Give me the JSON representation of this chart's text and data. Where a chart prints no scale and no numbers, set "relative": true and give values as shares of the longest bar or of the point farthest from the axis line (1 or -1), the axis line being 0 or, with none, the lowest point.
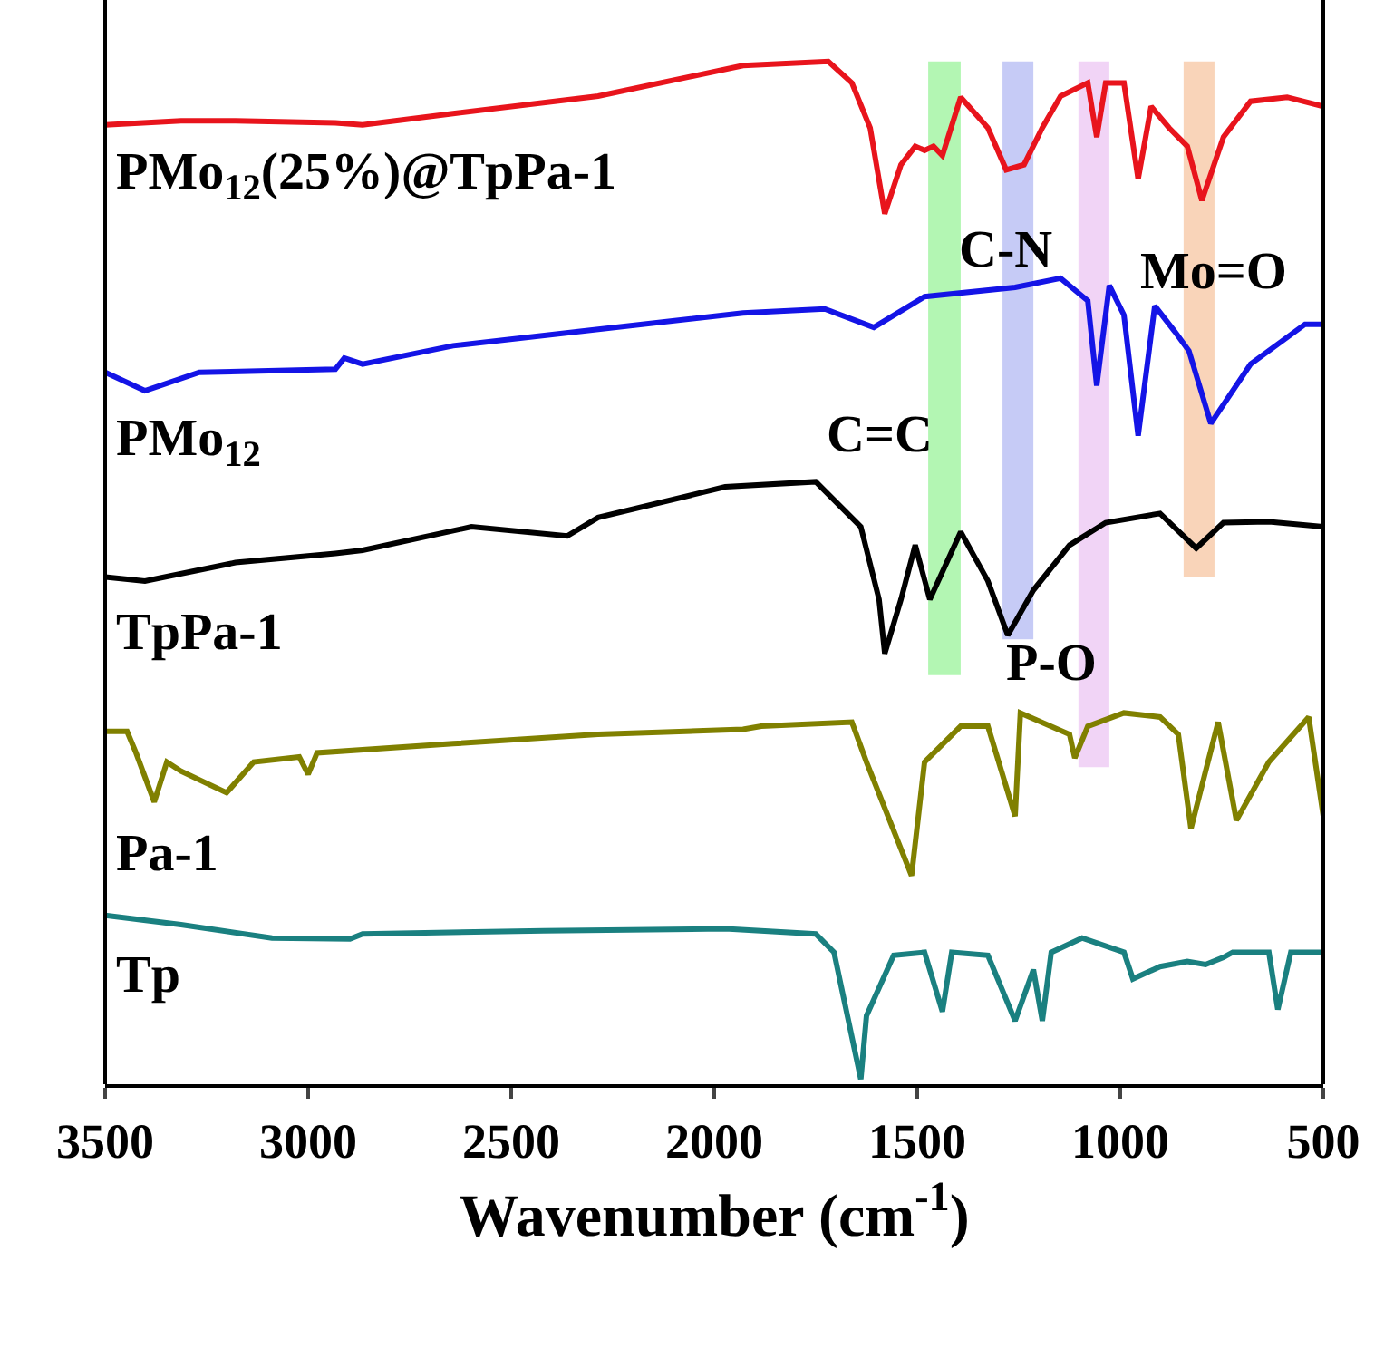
{
  "chart_data": {
    "type": "line",
    "relative": true,
    "xlabel": "Wavenumber (cm$^{-1}$)",
    "xlim": [
      3500,
      500
    ],
    "xticks": [
      3500,
      3000,
      2500,
      2000,
      1500,
      1000,
      500
    ],
    "legend": false,
    "marker": "none",
    "line_style": "solid",
    "series": [
      {
        "name": "PMo$_{12}$(25%)@TpPa-1",
        "color": "#e8141c",
        "x": [
          3500,
          3313,
          3179,
          2933,
          2866,
          2643,
          2286,
          1929,
          1719,
          1661,
          1616,
          1580,
          1540,
          1505,
          1482,
          1460,
          1438,
          1393,
          1326,
          1281,
          1237,
          1192,
          1147,
          1080,
          1058,
          1036,
          991,
          956,
          924,
          880,
          835,
          799,
          746,
          679,
          589,
          500
        ],
        "values": [
          0.938,
          0.942,
          0.942,
          0.94,
          0.938,
          0.949,
          0.966,
          0.996,
          1.0,
          0.979,
          0.935,
          0.851,
          0.899,
          0.917,
          0.913,
          0.917,
          0.908,
          0.965,
          0.935,
          0.894,
          0.899,
          0.935,
          0.966,
          0.979,
          0.926,
          0.979,
          0.979,
          0.885,
          0.956,
          0.935,
          0.917,
          0.864,
          0.926,
          0.961,
          0.965,
          0.956
        ]
      },
      {
        "name": "PMo$_{12}$",
        "color": "#1414e6",
        "x": [
          3500,
          3402,
          3268,
          2933,
          2911,
          2866,
          2643,
          2330,
          1929,
          1728,
          1607,
          1482,
          1259,
          1147,
          1080,
          1058,
          1027,
          991,
          956,
          915,
          866,
          831,
          777,
          679,
          545,
          500
        ],
        "values": [
          0.696,
          0.678,
          0.696,
          0.699,
          0.71,
          0.704,
          0.722,
          0.736,
          0.754,
          0.758,
          0.74,
          0.77,
          0.779,
          0.788,
          0.766,
          0.683,
          0.781,
          0.752,
          0.634,
          0.761,
          0.736,
          0.717,
          0.646,
          0.704,
          0.743,
          0.743
        ]
      },
      {
        "name": "TpPa-1",
        "color": "#000000",
        "x": [
          3500,
          3402,
          3179,
          2933,
          2866,
          2598,
          2362,
          2286,
          1973,
          1750,
          1639,
          1594,
          1580,
          1540,
          1505,
          1469,
          1393,
          1326,
          1277,
          1214,
          1125,
          1036,
          902,
          813,
          746,
          634,
          500
        ],
        "values": [
          0.496,
          0.492,
          0.51,
          0.519,
          0.522,
          0.545,
          0.536,
          0.554,
          0.584,
          0.589,
          0.545,
          0.474,
          0.421,
          0.474,
          0.527,
          0.474,
          0.54,
          0.492,
          0.439,
          0.483,
          0.527,
          0.549,
          0.558,
          0.524,
          0.549,
          0.55,
          0.545
        ]
      },
      {
        "name": "Pa-1",
        "color": "#808000",
        "x": [
          3500,
          3446,
          3424,
          3379,
          3348,
          3313,
          3201,
          3134,
          3022,
          3000,
          2978,
          2643,
          2286,
          1929,
          1884,
          1661,
          1625,
          1514,
          1482,
          1393,
          1326,
          1259,
          1246,
          1125,
          1112,
          1080,
          991,
          902,
          857,
          826,
          759,
          714,
          634,
          536,
          500
        ],
        "values": [
          0.345,
          0.345,
          0.324,
          0.276,
          0.315,
          0.306,
          0.285,
          0.315,
          0.32,
          0.303,
          0.324,
          0.333,
          0.342,
          0.347,
          0.35,
          0.354,
          0.315,
          0.204,
          0.315,
          0.35,
          0.35,
          0.262,
          0.363,
          0.342,
          0.319,
          0.35,
          0.363,
          0.359,
          0.342,
          0.25,
          0.354,
          0.258,
          0.315,
          0.359,
          0.262
        ]
      },
      {
        "name": "Tp",
        "color": "#1a8080",
        "x": [
          3500,
          3313,
          3089,
          2897,
          2866,
          2420,
          1973,
          1750,
          1705,
          1639,
          1625,
          1558,
          1482,
          1438,
          1415,
          1326,
          1259,
          1214,
          1192,
          1170,
          1094,
          991,
          969,
          902,
          835,
          790,
          746,
          723,
          634,
          612,
          580,
          500
        ],
        "values": [
          0.165,
          0.156,
          0.143,
          0.142,
          0.147,
          0.15,
          0.152,
          0.147,
          0.129,
          0.005,
          0.067,
          0.126,
          0.129,
          0.071,
          0.129,
          0.126,
          0.062,
          0.112,
          0.062,
          0.129,
          0.143,
          0.129,
          0.103,
          0.115,
          0.12,
          0.117,
          0.124,
          0.129,
          0.129,
          0.073,
          0.129,
          0.129
        ]
      }
    ],
    "bands": [
      {
        "axis": "x",
        "from": 1473,
        "to": 1393,
        "label": "C=C",
        "color": "#80f080"
      },
      {
        "axis": "x",
        "from": 1290,
        "to": 1214,
        "label": "C-N",
        "color": "#a0a8f0"
      },
      {
        "axis": "x",
        "from": 1103,
        "to": 1027,
        "label": "P-O",
        "color": "#e8b8f0"
      },
      {
        "axis": "x",
        "from": 844,
        "to": 768,
        "label": "Mo=O",
        "color": "#f5b88a"
      }
    ]
  }
}
